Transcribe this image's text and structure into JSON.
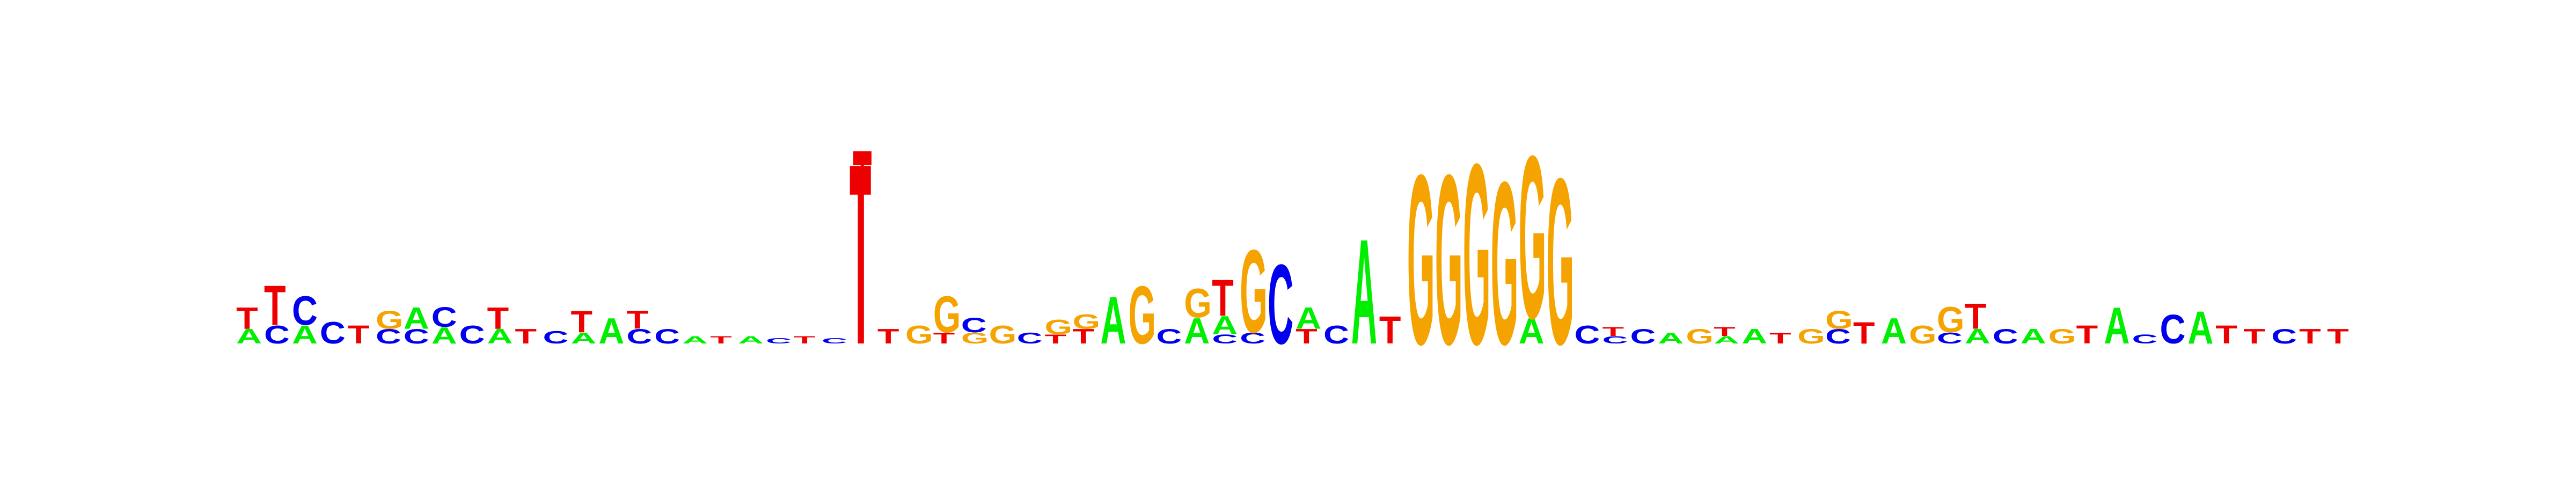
{
  "colors": {
    "A": "#00ee00",
    "C": "#0000ee",
    "G": "#f5a300",
    "T": "#ee0000"
  },
  "chart_data": {
    "type": "sequence_logo",
    "title": "",
    "xlabel": "",
    "ylabel": "",
    "axes_visible": false,
    "ylim": [
      0,
      2
    ],
    "positions": [
      {
        "letters": [
          [
            "A",
            0.08
          ],
          [
            "T",
            0.12
          ]
        ]
      },
      {
        "letters": [
          [
            "C",
            0.1
          ],
          [
            "T",
            0.22
          ]
        ]
      },
      {
        "letters": [
          [
            "A",
            0.1
          ],
          [
            "C",
            0.16
          ]
        ]
      },
      {
        "letters": [
          [
            "C",
            0.12
          ]
        ]
      },
      {
        "letters": [
          [
            "T",
            0.1
          ]
        ]
      },
      {
        "letters": [
          [
            "C",
            0.08
          ],
          [
            "G",
            0.1
          ]
        ]
      },
      {
        "letters": [
          [
            "C",
            0.08
          ],
          [
            "A",
            0.12
          ]
        ]
      },
      {
        "letters": [
          [
            "A",
            0.09
          ],
          [
            "C",
            0.11
          ]
        ]
      },
      {
        "letters": [
          [
            "C",
            0.1
          ]
        ]
      },
      {
        "letters": [
          [
            "A",
            0.08
          ],
          [
            "T",
            0.12
          ]
        ]
      },
      {
        "letters": [
          [
            "T",
            0.08
          ]
        ]
      },
      {
        "letters": [
          [
            "C",
            0.07
          ]
        ]
      },
      {
        "letters": [
          [
            "A",
            0.06
          ],
          [
            "T",
            0.12
          ]
        ]
      },
      {
        "letters": [
          [
            "A",
            0.14
          ]
        ]
      },
      {
        "letters": [
          [
            "C",
            0.08
          ],
          [
            "T",
            0.1
          ]
        ]
      },
      {
        "letters": [
          [
            "C",
            0.08
          ]
        ]
      },
      {
        "letters": [
          [
            "A",
            0.04
          ]
        ]
      },
      {
        "letters": [
          [
            "T",
            0.04
          ]
        ]
      },
      {
        "letters": [
          [
            "A",
            0.04
          ]
        ]
      },
      {
        "letters": [
          [
            "C",
            0.03
          ]
        ]
      },
      {
        "letters": [
          [
            "T",
            0.04
          ]
        ]
      },
      {
        "letters": [
          [
            "C",
            0.03
          ]
        ]
      },
      {
        "letters": [
          [
            "T",
            1.0
          ]
        ]
      },
      {
        "letters": [
          [
            "T",
            0.08
          ]
        ]
      },
      {
        "letters": [
          [
            "G",
            0.1
          ]
        ]
      },
      {
        "letters": [
          [
            "T",
            0.06
          ],
          [
            "G",
            0.2
          ]
        ]
      },
      {
        "letters": [
          [
            "C",
            0.08
          ],
          [
            "G",
            0.06
          ]
        ]
      },
      {
        "letters": [
          [
            "G",
            0.1
          ]
        ]
      },
      {
        "letters": [
          [
            "C",
            0.06
          ]
        ]
      },
      {
        "letters": [
          [
            "T",
            0.05
          ],
          [
            "G",
            0.08
          ]
        ]
      },
      {
        "letters": [
          [
            "T",
            0.08
          ],
          [
            "G",
            0.08
          ]
        ]
      },
      {
        "letters": [
          [
            "A",
            0.26
          ]
        ]
      },
      {
        "letters": [
          [
            "G",
            0.32
          ]
        ]
      },
      {
        "letters": [
          [
            "C",
            0.08
          ]
        ]
      },
      {
        "letters": [
          [
            "A",
            0.14
          ],
          [
            "G",
            0.16
          ]
        ]
      },
      {
        "letters": [
          [
            "C",
            0.05
          ],
          [
            "A",
            0.1
          ],
          [
            "T",
            0.2
          ]
        ]
      },
      {
        "letters": [
          [
            "C",
            0.06
          ],
          [
            "G",
            0.46
          ]
        ]
      },
      {
        "letters": [
          [
            "C",
            0.44
          ]
        ]
      },
      {
        "letters": [
          [
            "T",
            0.08
          ],
          [
            "A",
            0.12
          ]
        ]
      },
      {
        "letters": [
          [
            "C",
            0.1
          ]
        ]
      },
      {
        "letters": [
          [
            "A",
            0.58
          ]
        ]
      },
      {
        "letters": [
          [
            "T",
            0.15
          ]
        ]
      },
      {
        "letters": [
          [
            "G",
            0.94
          ]
        ]
      },
      {
        "letters": [
          [
            "G",
            0.94
          ]
        ]
      },
      {
        "letters": [
          [
            "G",
            1.0
          ]
        ]
      },
      {
        "letters": [
          [
            "G",
            0.9
          ]
        ]
      },
      {
        "letters": [
          [
            "A",
            0.14
          ],
          [
            "G",
            0.9
          ]
        ]
      },
      {
        "letters": [
          [
            "G",
            0.92
          ]
        ]
      },
      {
        "letters": [
          [
            "C",
            0.1
          ]
        ]
      },
      {
        "letters": [
          [
            "T",
            0.05
          ],
          [
            "C",
            0.04
          ]
        ]
      },
      {
        "letters": [
          [
            "C",
            0.08
          ]
        ]
      },
      {
        "letters": [
          [
            "A",
            0.06
          ]
        ]
      },
      {
        "letters": [
          [
            "G",
            0.08
          ]
        ]
      },
      {
        "letters": [
          [
            "T",
            0.05
          ],
          [
            "A",
            0.04
          ]
        ]
      },
      {
        "letters": [
          [
            "A",
            0.08
          ]
        ]
      },
      {
        "letters": [
          [
            "T",
            0.06
          ]
        ]
      },
      {
        "letters": [
          [
            "G",
            0.08
          ]
        ]
      },
      {
        "letters": [
          [
            "C",
            0.08
          ],
          [
            "G",
            0.1
          ]
        ]
      },
      {
        "letters": [
          [
            "T",
            0.12
          ]
        ]
      },
      {
        "letters": [
          [
            "A",
            0.14
          ]
        ]
      },
      {
        "letters": [
          [
            "G",
            0.1
          ]
        ]
      },
      {
        "letters": [
          [
            "C",
            0.06
          ],
          [
            "G",
            0.14
          ]
        ]
      },
      {
        "letters": [
          [
            "A",
            0.08
          ],
          [
            "T",
            0.14
          ]
        ]
      },
      {
        "letters": [
          [
            "C",
            0.08
          ]
        ]
      },
      {
        "letters": [
          [
            "A",
            0.08
          ]
        ]
      },
      {
        "letters": [
          [
            "G",
            0.08
          ]
        ]
      },
      {
        "letters": [
          [
            "T",
            0.1
          ]
        ]
      },
      {
        "letters": [
          [
            "A",
            0.2
          ]
        ]
      },
      {
        "letters": [
          [
            "C",
            0.05
          ]
        ]
      },
      {
        "letters": [
          [
            "C",
            0.16
          ]
        ]
      },
      {
        "letters": [
          [
            "A",
            0.18
          ]
        ]
      },
      {
        "letters": [
          [
            "T",
            0.1
          ]
        ]
      },
      {
        "letters": [
          [
            "T",
            0.08
          ]
        ]
      },
      {
        "letters": [
          [
            "C",
            0.08
          ]
        ]
      },
      {
        "letters": [
          [
            "T",
            0.08
          ]
        ]
      },
      {
        "letters": [
          [
            "T",
            0.08
          ]
        ]
      }
    ]
  }
}
